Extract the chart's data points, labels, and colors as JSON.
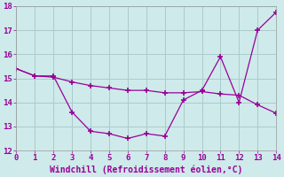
{
  "xlabel": "Windchill (Refroidissement éolien,°C)",
  "line1_x": [
    0,
    1,
    2,
    3,
    4,
    5,
    6,
    7,
    8,
    9,
    10,
    11,
    12,
    13,
    14
  ],
  "line1_y": [
    15.4,
    15.1,
    15.1,
    13.6,
    12.8,
    12.7,
    12.5,
    12.7,
    12.6,
    14.1,
    14.5,
    15.9,
    14.0,
    17.0,
    17.75
  ],
  "line2_x": [
    0,
    1,
    2,
    3,
    4,
    5,
    6,
    7,
    8,
    9,
    10,
    11,
    12,
    13,
    14
  ],
  "line2_y": [
    15.4,
    15.1,
    15.05,
    14.85,
    14.7,
    14.6,
    14.5,
    14.5,
    14.4,
    14.4,
    14.45,
    14.35,
    14.3,
    13.9,
    13.55
  ],
  "line_color": "#990099",
  "bg_color": "#ceeaea",
  "grid_color": "#aacccc",
  "ylim": [
    12,
    18
  ],
  "xlim": [
    0,
    14
  ],
  "yticks": [
    12,
    13,
    14,
    15,
    16,
    17,
    18
  ],
  "xticks": [
    0,
    1,
    2,
    3,
    4,
    5,
    6,
    7,
    8,
    9,
    10,
    11,
    12,
    13,
    14
  ],
  "marker": "+",
  "markersize": 4,
  "linewidth": 0.9,
  "xlabel_fontsize": 7,
  "tick_fontsize": 6.5,
  "label_color": "#990099"
}
